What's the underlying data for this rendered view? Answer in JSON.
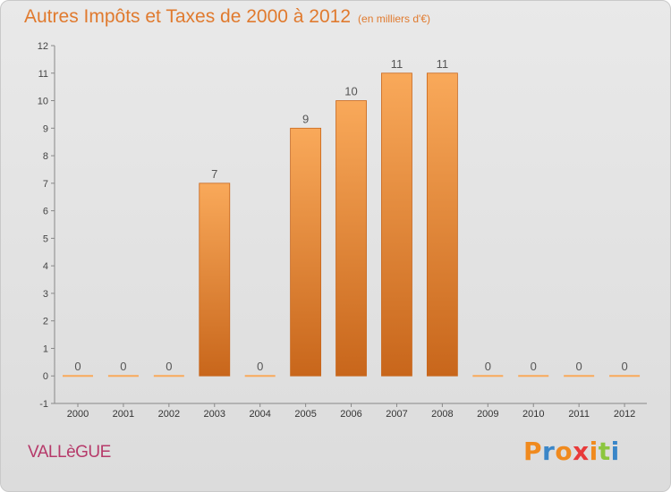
{
  "header": {
    "title": "Autres Impôts et Taxes de 2000 à 2012",
    "unit": "(en milliers d'€)"
  },
  "footer": {
    "commune": "VALLèGUE",
    "brand": "Proxiti"
  },
  "colors": {
    "accent": "#e07a2e",
    "bar_light": "#f9a95a",
    "bar_dark": "#c8661b",
    "commune_text": "#b63a6a",
    "brand_letters": [
      "#f08a1e",
      "#3a86c8",
      "#f08a1e",
      "#e83a3a",
      "#f08a1e",
      "#8cc63f",
      "#3a86c8"
    ]
  },
  "chart_data": {
    "type": "bar",
    "categories": [
      "2000",
      "2001",
      "2002",
      "2003",
      "2004",
      "2005",
      "2006",
      "2007",
      "2008",
      "2009",
      "2010",
      "2011",
      "2012"
    ],
    "values": [
      0,
      0,
      0,
      7,
      0,
      9,
      10,
      11,
      11,
      0,
      0,
      0,
      0
    ],
    "data_labels": [
      "0",
      "0",
      "0",
      "7",
      "0",
      "9",
      "10",
      "11",
      "11",
      "0",
      "0",
      "0",
      "0"
    ],
    "title": "Autres Impôts et Taxes de 2000 à 2012",
    "ylabel": "",
    "xlabel": "",
    "ylim": [
      -1,
      12
    ],
    "y_ticks": [
      -1,
      0,
      1,
      2,
      3,
      4,
      5,
      6,
      7,
      8,
      9,
      10,
      11,
      12
    ],
    "y_tick_labels": [
      "-1",
      "0",
      "1",
      "2",
      "3",
      "4",
      "5",
      "6",
      "7",
      "8",
      "9",
      "10",
      "11",
      "12"
    ],
    "grid": false,
    "legend": "none"
  }
}
